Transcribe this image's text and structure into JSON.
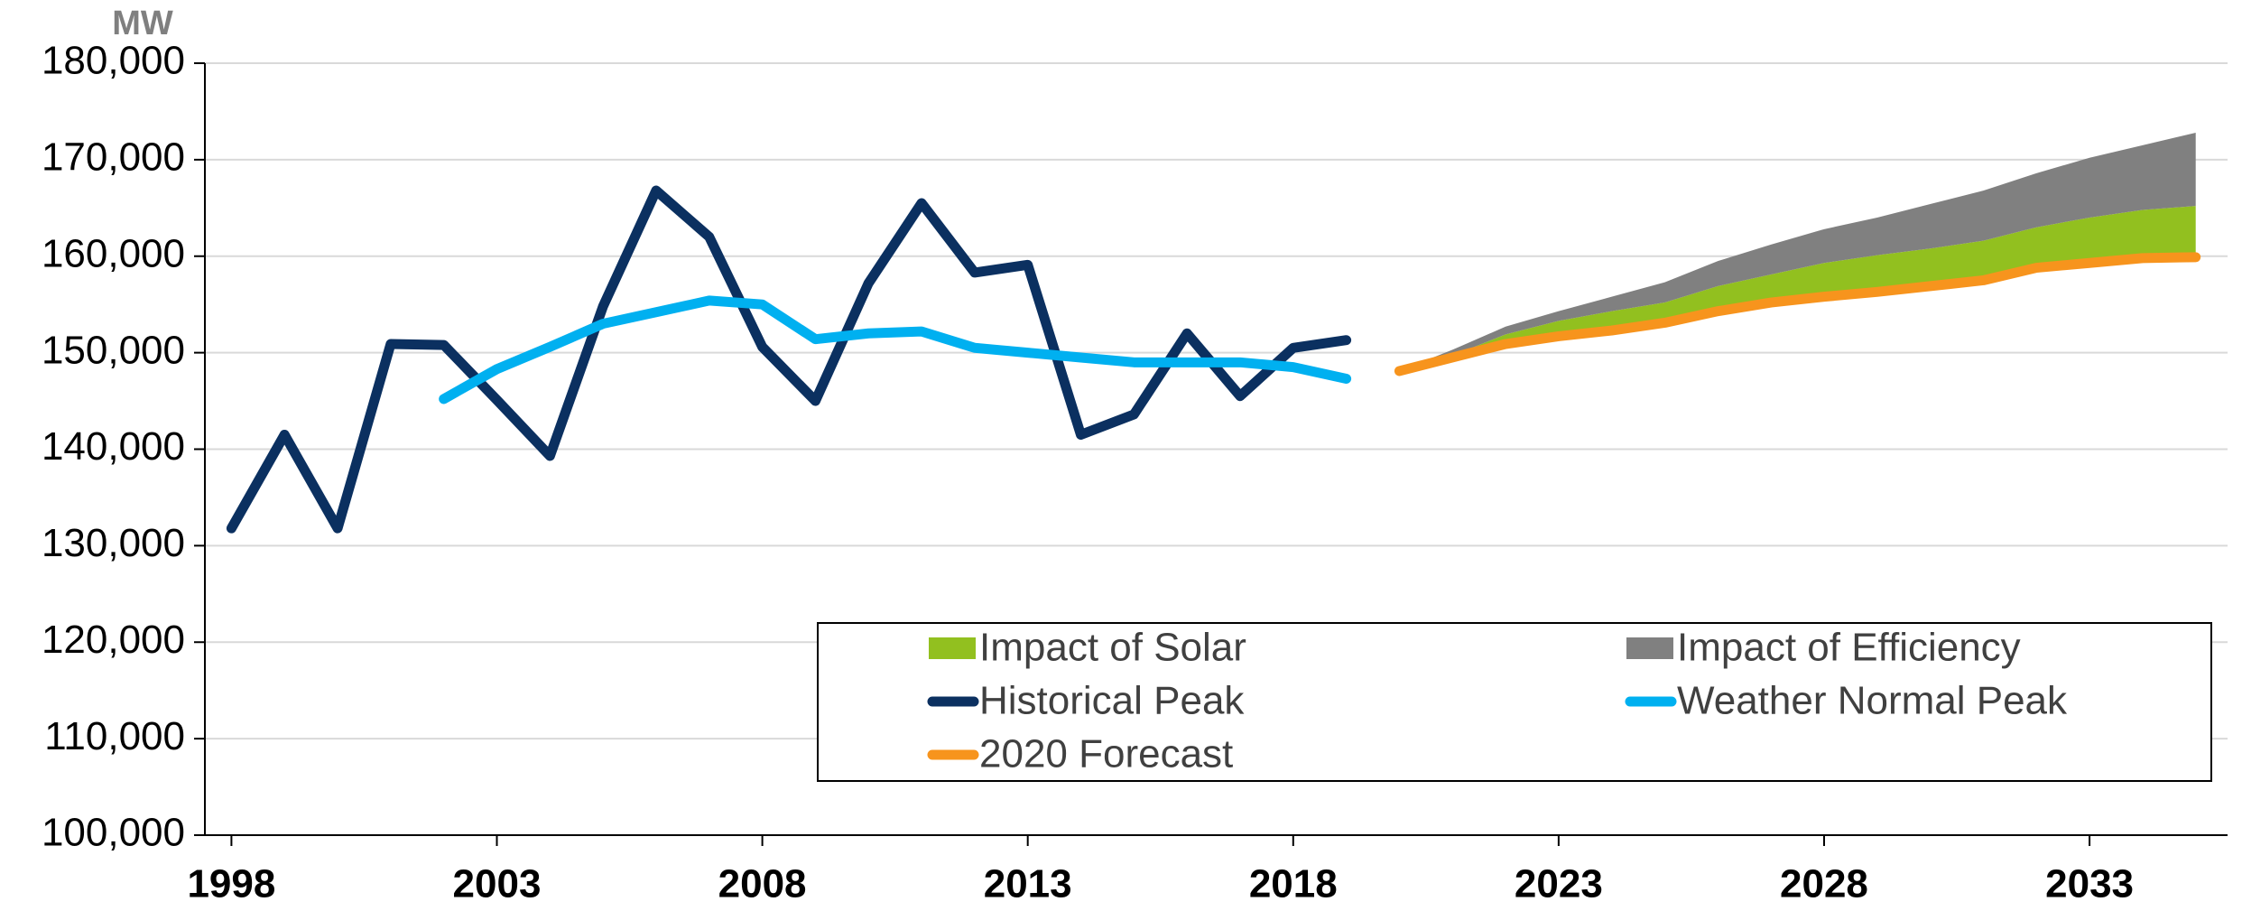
{
  "chart_data": {
    "type": "line",
    "y_label": "MW",
    "x": [
      1998,
      1999,
      2000,
      2001,
      2002,
      2003,
      2004,
      2005,
      2006,
      2007,
      2008,
      2009,
      2010,
      2011,
      2012,
      2013,
      2014,
      2015,
      2016,
      2017,
      2018,
      2019,
      2020,
      2021,
      2022,
      2023,
      2024,
      2025,
      2026,
      2027,
      2028,
      2029,
      2030,
      2031,
      2032,
      2033,
      2034,
      2035
    ],
    "xlim": [
      1997.5,
      2035.6
    ],
    "xticks": [
      1998,
      2003,
      2008,
      2013,
      2018,
      2023,
      2028,
      2033
    ],
    "ylim": [
      100000,
      180000
    ],
    "yticks": [
      {
        "value": 100000,
        "label": "100,000"
      },
      {
        "value": 110000,
        "label": "110,000"
      },
      {
        "value": 120000,
        "label": "120,000"
      },
      {
        "value": 130000,
        "label": "130,000"
      },
      {
        "value": 140000,
        "label": "140,000"
      },
      {
        "value": 150000,
        "label": "150,000"
      },
      {
        "value": 160000,
        "label": "160,000"
      },
      {
        "value": 170000,
        "label": "170,000"
      },
      {
        "value": 180000,
        "label": "180,000"
      }
    ],
    "grid": true,
    "legend": "lower right",
    "series": [
      {
        "name": "Impact of Solar",
        "kind": "area",
        "color": "#92c01f",
        "values": [
          null,
          null,
          null,
          null,
          null,
          null,
          null,
          null,
          null,
          null,
          null,
          null,
          null,
          null,
          null,
          null,
          null,
          null,
          null,
          null,
          null,
          null,
          0,
          200,
          1000,
          1600,
          2000,
          2100,
          2600,
          2900,
          3500,
          3800,
          3900,
          4100,
          4200,
          4700,
          5000,
          5300
        ]
      },
      {
        "name": "Impact of Efficiency",
        "kind": "area",
        "color": "#808080",
        "values": [
          null,
          null,
          null,
          null,
          null,
          null,
          null,
          null,
          null,
          null,
          null,
          null,
          null,
          null,
          null,
          null,
          null,
          null,
          null,
          null,
          null,
          null,
          0,
          600,
          800,
          1000,
          1500,
          2100,
          2600,
          3100,
          3500,
          3900,
          4600,
          5200,
          5600,
          6200,
          6700,
          7600
        ]
      },
      {
        "name": "Historical Peak",
        "kind": "line",
        "color": "#0b3060",
        "values": [
          131800,
          141500,
          131800,
          150900,
          150800,
          145100,
          139300,
          154800,
          166800,
          162000,
          150600,
          145000,
          157200,
          165500,
          158300,
          159100,
          141500,
          143600,
          152000,
          145500,
          150500,
          151300,
          null,
          null,
          null,
          null,
          null,
          null,
          null,
          null,
          null,
          null,
          null,
          null,
          null,
          null,
          null,
          null
        ]
      },
      {
        "name": "Weather Normal Peak",
        "kind": "line",
        "color": "#00b0f0",
        "values": [
          null,
          null,
          null,
          null,
          145200,
          148300,
          150600,
          153000,
          154200,
          155400,
          155000,
          151400,
          152000,
          152200,
          150500,
          150000,
          149500,
          149000,
          149000,
          149000,
          148500,
          147300,
          null,
          null,
          null,
          null,
          null,
          null,
          null,
          null,
          null,
          null,
          null,
          null,
          null,
          null,
          null,
          null
        ]
      },
      {
        "name": "2020 Forecast",
        "kind": "line",
        "color": "#f7941d",
        "values": [
          null,
          null,
          null,
          null,
          null,
          null,
          null,
          null,
          null,
          null,
          null,
          null,
          null,
          null,
          null,
          null,
          null,
          null,
          null,
          null,
          null,
          null,
          148100,
          149500,
          150900,
          151700,
          152300,
          153100,
          154300,
          155200,
          155800,
          156300,
          156900,
          157500,
          158800,
          159300,
          159800,
          159900
        ]
      }
    ]
  }
}
